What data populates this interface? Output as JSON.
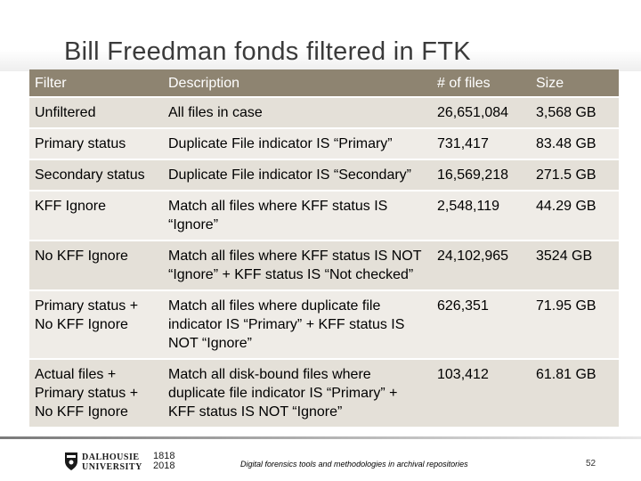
{
  "title": "Bill Freedman fonds filtered in FTK",
  "table": {
    "headers": [
      "Filter",
      "Description",
      "# of files",
      "Size"
    ],
    "rows": [
      [
        "Unfiltered",
        "All files in case",
        "26,651,084",
        "3,568 GB"
      ],
      [
        "Primary status",
        "Duplicate File indicator IS “Primary”",
        "731,417",
        "83.48 GB"
      ],
      [
        "Secondary status",
        "Duplicate File indicator IS “Secondary”",
        "16,569,218",
        "271.5 GB"
      ],
      [
        "KFF Ignore",
        "Match all files where KFF status IS “Ignore”",
        "2,548,119",
        "44.29 GB"
      ],
      [
        "No KFF Ignore",
        "Match all files where KFF status IS NOT “Ignore” + KFF status IS “Not checked”",
        "24,102,965",
        "3524 GB"
      ],
      [
        "Primary status + No KFF Ignore",
        "Match all files where duplicate file indicator IS “Primary” + KFF status IS NOT “Ignore”",
        "626,351",
        "71.95 GB"
      ],
      [
        "Actual files + Primary status + No KFF Ignore",
        "Match all disk-bound files where duplicate file indicator IS “Primary” + KFF status IS NOT “Ignore”",
        "103,412",
        "61.81 GB"
      ]
    ]
  },
  "footer": {
    "logo_line1": "DALHOUSIE",
    "logo_line2": "UNIVERSITY",
    "year1": "1818",
    "year2": "2018",
    "caption": "Digital forensics tools and methodologies in archival repositories",
    "page_number": "52"
  },
  "colors": {
    "header_bg": "#8e8471",
    "row_odd": "#e4e0d8",
    "row_even": "#efece7"
  },
  "icons": {
    "logo": "dalhousie-crest-icon"
  }
}
